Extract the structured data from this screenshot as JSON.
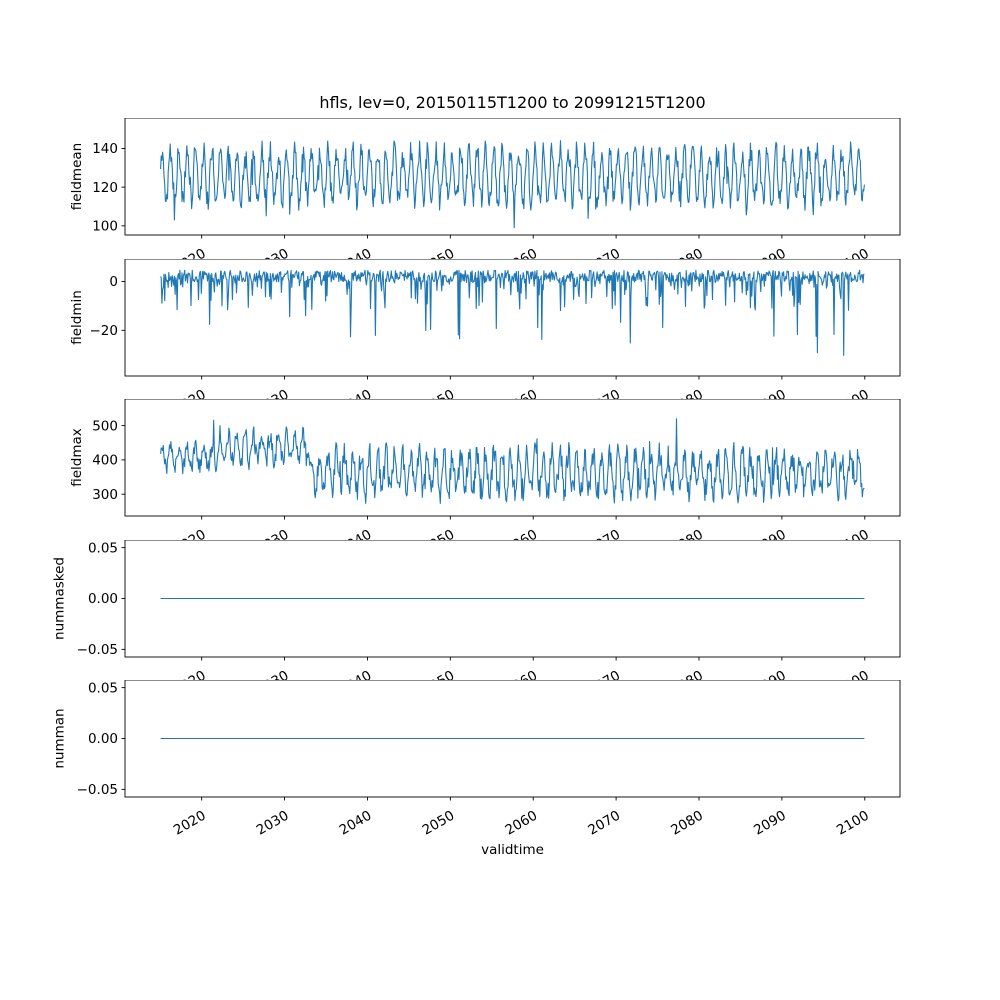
{
  "figure": {
    "title": "hfls, lev=0, 20150115T1200 to 20991215T1200",
    "variable": "hfls",
    "level": "lev=0",
    "time_start": "20150115T1200",
    "time_end": "20991215T1200",
    "xlabel": "validtime",
    "background_color": "#ffffff",
    "axis_color": "#000000",
    "line_color": "#1f77b4",
    "xlim": [
      2010.75,
      2104.25
    ],
    "x_tick_values": [
      2020,
      2030,
      2040,
      2050,
      2060,
      2070,
      2080,
      2090,
      2100
    ],
    "x_tick_labels": [
      "2020",
      "2030",
      "2040",
      "2050",
      "2060",
      "2070",
      "2080",
      "2090",
      "2100"
    ]
  },
  "chart_data": [
    {
      "type": "line",
      "ylabel": "fieldmean",
      "x_start": 2015.04,
      "x_end": 2099.96,
      "points_per_year": 12,
      "ylim": [
        95.25,
        155.75
      ],
      "yticks": [
        100,
        120,
        140
      ],
      "ytick_labels": [
        "100",
        "120",
        "140"
      ],
      "series": {
        "name": "fieldmean",
        "description": "monthly field mean of hfls; dense annual oscillation mostly 105-148, dips to ~99, peaks to ~153",
        "approx_mean": 125,
        "approx_min": 99,
        "approx_max": 153,
        "gen": {
          "mode": "seasonal",
          "seed": 11,
          "base": 126,
          "amp": 13,
          "noise": 5.5,
          "dip_prob": 0.05,
          "dip_scale": 12,
          "peak_prob": 0.03,
          "peak_scale": 8,
          "clip": [
            99,
            153
          ]
        }
      }
    },
    {
      "type": "line",
      "ylabel": "fieldmin",
      "x_start": 2015.04,
      "x_end": 2099.96,
      "points_per_year": 12,
      "ylim": [
        -38.7,
        9.2
      ],
      "yticks": [
        0,
        -20
      ],
      "ytick_labels": [
        "0",
        "−20"
      ],
      "series": {
        "name": "fieldmin",
        "description": "hovers near 0 to 5 with frequent downward spikes to -5..-25 and rare deep spikes to ~-36",
        "approx_mean": 0,
        "approx_min": -36,
        "approx_max": 7,
        "gen": {
          "mode": "spikes-down",
          "seed": 22,
          "base": 2.2,
          "noise": 2.4,
          "spike_prob": 0.3,
          "spike_scale": 15,
          "deep_prob": 0.018,
          "deep_min": 10,
          "deep_scale": 18,
          "clip": [
            -36.5,
            7
          ]
        }
      }
    },
    {
      "type": "line",
      "ylabel": "fieldmax",
      "x_start": 2015.04,
      "x_end": 2099.96,
      "points_per_year": 12,
      "ylim": [
        236.5,
        577.5
      ],
      "yticks": [
        300,
        400,
        500
      ],
      "ytick_labels": [
        "300",
        "400",
        "500"
      ],
      "series": {
        "name": "fieldmax",
        "description": "oscillates ~260-530; higher mean (~430) before ~2033 then ~360 with occasional spikes up to ~560",
        "approx_mean": 380,
        "approx_min": 255,
        "approx_max": 560,
        "gen": {
          "mode": "segmented",
          "seed": 33,
          "segments": [
            {
              "until": 2022,
              "base": 408,
              "amp": 30,
              "noise": 22
            },
            {
              "until": 2033,
              "base": 435,
              "amp": 38,
              "noise": 28
            },
            {
              "until": 2101,
              "base": 362,
              "amp": 55,
              "noise": 36
            }
          ],
          "up_spike_prob": 0.008,
          "up_spike": 100,
          "clip": [
            253,
            560
          ]
        }
      }
    },
    {
      "type": "line",
      "ylabel": "nummasked",
      "x_start": 2015.04,
      "x_end": 2099.96,
      "points_per_year": 12,
      "ylim": [
        -0.0575,
        0.0575
      ],
      "yticks": [
        -0.05,
        0,
        0.05
      ],
      "ytick_labels": [
        "−0.05",
        "0.00",
        "0.05"
      ],
      "series": {
        "name": "nummasked",
        "description": "constant 0 for the entire period",
        "approx_mean": 0,
        "approx_min": 0,
        "approx_max": 0,
        "gen": {
          "mode": "constant",
          "seed": 44,
          "value": 0
        }
      }
    },
    {
      "type": "line",
      "ylabel": "numman",
      "x_start": 2015.04,
      "x_end": 2099.96,
      "points_per_year": 12,
      "ylim": [
        -0.0575,
        0.0575
      ],
      "yticks": [
        -0.05,
        0,
        0.05
      ],
      "ytick_labels": [
        "−0.05",
        "0.00",
        "0.05"
      ],
      "series": {
        "name": "numman",
        "description": "constant 0 for the entire period",
        "approx_mean": 0,
        "approx_min": 0,
        "approx_max": 0,
        "gen": {
          "mode": "constant",
          "seed": 55,
          "value": 0
        }
      }
    }
  ]
}
